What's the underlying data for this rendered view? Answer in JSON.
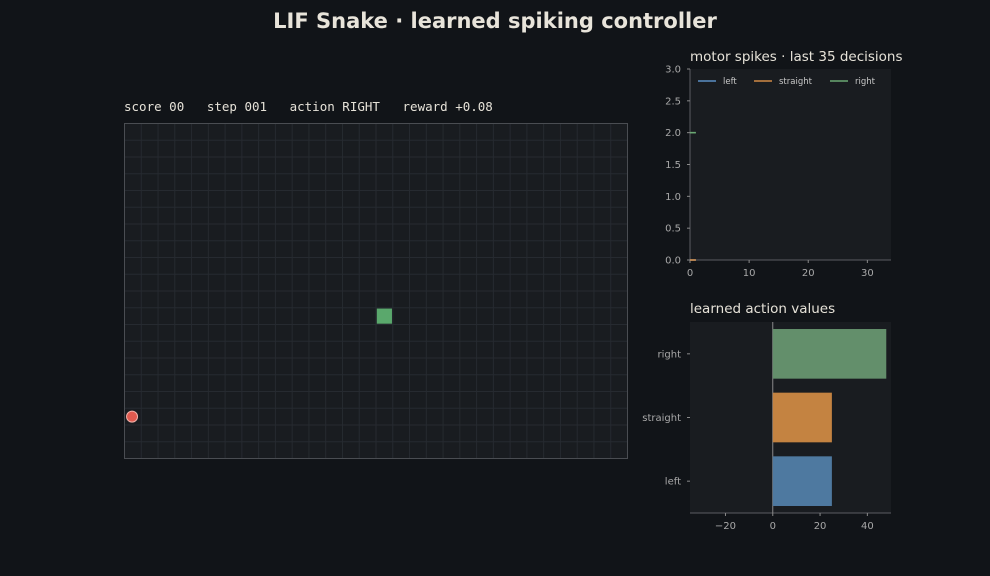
{
  "title": "LIF Snake · learned spiking controller",
  "status": {
    "score_label": "score",
    "score": "00",
    "step_label": "step",
    "step": "001",
    "action_label": "action",
    "action": "RIGHT",
    "reward_label": "reward",
    "reward": "+0.08"
  },
  "board": {
    "cols": 30,
    "rows": 20,
    "snake": [
      {
        "col": 15,
        "row": 11
      }
    ],
    "food": {
      "col": 0,
      "row": 17
    },
    "colors": {
      "bg": "#191c20",
      "grid": "#262a30",
      "snake": "#5aa86c",
      "food": "#e05a4f"
    }
  },
  "chart_data": [
    {
      "type": "line",
      "title": "motor spikes · last 35 decisions",
      "xlim": [
        0,
        34
      ],
      "ylim": [
        0,
        3
      ],
      "xticks": [
        0,
        10,
        20,
        30
      ],
      "yticks": [
        0.0,
        0.5,
        1.0,
        1.5,
        2.0,
        2.5,
        3.0
      ],
      "legend": "top",
      "series": [
        {
          "name": "left",
          "color": "#5b8fc4",
          "x": [
            0,
            1
          ],
          "y": [
            0,
            0
          ]
        },
        {
          "name": "straight",
          "color": "#d08a45",
          "x": [
            0,
            1
          ],
          "y": [
            0,
            0
          ]
        },
        {
          "name": "right",
          "color": "#6aa873",
          "x": [
            0,
            1
          ],
          "y": [
            2,
            2
          ]
        }
      ]
    },
    {
      "type": "bar",
      "orientation": "horizontal",
      "title": "learned action values",
      "categories": [
        "left",
        "straight",
        "right"
      ],
      "values": [
        25,
        25,
        48
      ],
      "colors": [
        "#4e79a0",
        "#c48341",
        "#638f6b"
      ],
      "xlim": [
        -35,
        50
      ],
      "xticks": [
        -20,
        0,
        20,
        40
      ]
    }
  ]
}
